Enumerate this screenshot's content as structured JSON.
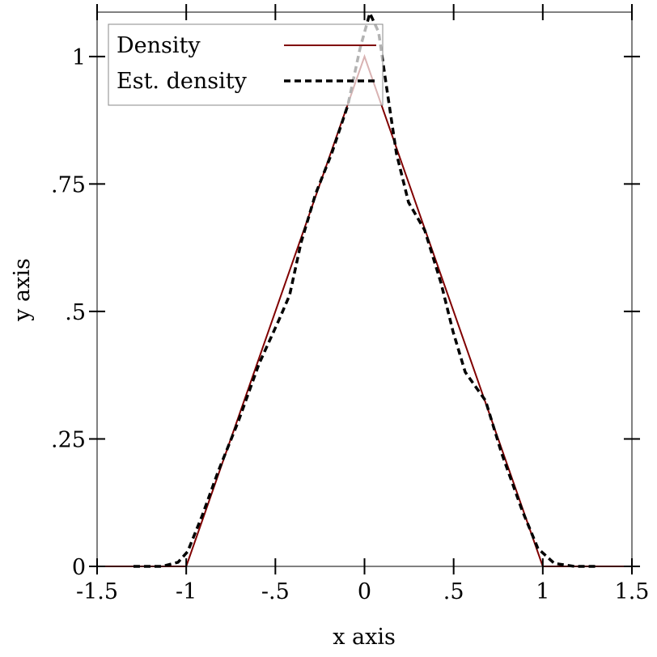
{
  "chart_data": {
    "type": "line",
    "xlabel": "x axis",
    "ylabel": "y axis",
    "xlim": [
      -1.5,
      1.5
    ],
    "ylim": [
      0,
      1.087
    ],
    "xticks": [
      {
        "value": -1.5,
        "label": "-1.5"
      },
      -1,
      {
        "value": -0.5,
        "label": "-.5"
      },
      0,
      {
        "value": 0.5,
        "label": ".5"
      },
      1,
      1.5
    ],
    "yticks": [
      0,
      {
        "value": 0.25,
        "label": ".25"
      },
      {
        "value": 0.5,
        "label": ".5"
      },
      {
        "value": 0.75,
        "label": ".75"
      },
      1
    ],
    "legend": "top-left",
    "series": [
      {
        "name": "Density",
        "color": "#800000",
        "style": "solid",
        "x": [
          -1.5,
          -1,
          0,
          1,
          1.5
        ],
        "values": [
          0,
          0,
          1,
          0,
          0
        ]
      },
      {
        "name": "Est. density",
        "color": "#000000",
        "style": "dashed",
        "x": [
          -1.296,
          -1.137,
          -1.046,
          -0.992,
          -0.91,
          -0.82,
          -0.706,
          -0.592,
          -0.479,
          -0.42,
          -0.356,
          -0.275,
          -0.184,
          -0.093,
          -0.025,
          0.03,
          0.079,
          0.125,
          0.179,
          0.247,
          0.338,
          0.429,
          0.497,
          0.565,
          0.679,
          0.769,
          0.883,
          0.973,
          1.064,
          1.178,
          1.314
        ],
        "values": [
          0,
          0,
          0.008,
          0.029,
          0.1,
          0.187,
          0.286,
          0.397,
          0.484,
          0.532,
          0.635,
          0.73,
          0.81,
          0.905,
          1.016,
          1.085,
          1.048,
          0.937,
          0.81,
          0.714,
          0.659,
          0.556,
          0.46,
          0.381,
          0.325,
          0.222,
          0.111,
          0.035,
          0.006,
          0,
          0
        ]
      }
    ]
  }
}
